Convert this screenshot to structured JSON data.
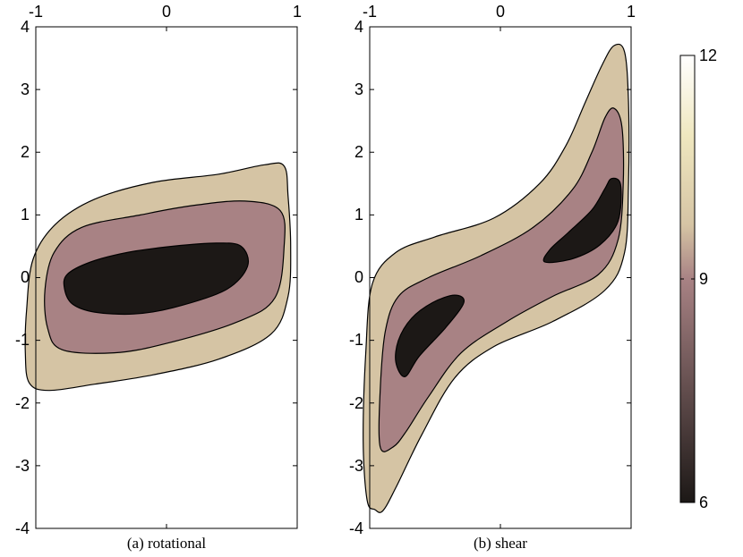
{
  "chart_data": [
    {
      "type": "contour",
      "caption": "(a) rotational",
      "xlim": [
        -1,
        1
      ],
      "ylim": [
        -4,
        4
      ],
      "xticks": [
        "-1",
        "0",
        "1"
      ],
      "yticks": [
        "4",
        "3",
        "2",
        "1",
        "0",
        "-1",
        "-2",
        "-3",
        "-4"
      ],
      "levels": [
        {
          "level": 7,
          "color": "#1c1816",
          "polygon": [
            [
              -0.78,
              -0.18
            ],
            [
              -0.72,
              -0.42
            ],
            [
              -0.55,
              -0.55
            ],
            [
              -0.25,
              -0.58
            ],
            [
              0.05,
              -0.48
            ],
            [
              0.45,
              -0.2
            ],
            [
              0.62,
              0.18
            ],
            [
              0.57,
              0.5
            ],
            [
              0.38,
              0.55
            ],
            [
              0.05,
              0.5
            ],
            [
              -0.3,
              0.4
            ],
            [
              -0.58,
              0.25
            ],
            [
              -0.76,
              0.05
            ]
          ]
        },
        {
          "level": 8,
          "color": "#a88284",
          "polygon": [
            [
              -0.93,
              -0.2
            ],
            [
              -0.91,
              -0.8
            ],
            [
              -0.8,
              -1.15
            ],
            [
              -0.4,
              -1.2
            ],
            [
              0.0,
              -1.05
            ],
            [
              0.55,
              -0.7
            ],
            [
              0.83,
              -0.32
            ],
            [
              0.9,
              0.5
            ],
            [
              0.87,
              1.07
            ],
            [
              0.6,
              1.22
            ],
            [
              0.2,
              1.15
            ],
            [
              -0.2,
              1.0
            ],
            [
              -0.65,
              0.8
            ],
            [
              -0.86,
              0.4
            ]
          ]
        },
        {
          "level": 9,
          "color": "#d5c4a4",
          "polygon": [
            [
              -1.07,
              -0.5
            ],
            [
              -1.08,
              -1.2
            ],
            [
              -1.05,
              -1.68
            ],
            [
              -0.9,
              -1.8
            ],
            [
              -0.55,
              -1.7
            ],
            [
              -0.1,
              -1.55
            ],
            [
              0.4,
              -1.3
            ],
            [
              0.8,
              -0.9
            ],
            [
              0.93,
              -0.3
            ],
            [
              0.95,
              0.5
            ],
            [
              0.93,
              1.3
            ],
            [
              0.9,
              1.78
            ],
            [
              0.75,
              1.8
            ],
            [
              0.4,
              1.65
            ],
            [
              -0.1,
              1.52
            ],
            [
              -0.55,
              1.25
            ],
            [
              -0.85,
              0.85
            ],
            [
              -1.02,
              0.3
            ]
          ]
        }
      ]
    },
    {
      "type": "contour",
      "caption": "(b) shear",
      "xlim": [
        -1,
        1
      ],
      "ylim": [
        -4,
        4
      ],
      "xticks": [
        "-1",
        "0",
        "1"
      ],
      "yticks": [
        "4",
        "3",
        "2",
        "1",
        "0",
        "-1",
        "-2",
        "-3",
        "-4"
      ],
      "levels": [
        {
          "level": 7,
          "color": "#1c1816",
          "polygon": [
            [
              -0.8,
              -1.35
            ],
            [
              -0.78,
              -1.0
            ],
            [
              -0.68,
              -0.65
            ],
            [
              -0.52,
              -0.4
            ],
            [
              -0.35,
              -0.28
            ],
            [
              -0.28,
              -0.4
            ],
            [
              -0.42,
              -0.8
            ],
            [
              -0.62,
              -1.25
            ],
            [
              -0.73,
              -1.58
            ]
          ]
        },
        {
          "level": 7,
          "color": "#1c1816",
          "polygon": [
            [
              0.34,
              0.25
            ],
            [
              0.38,
              0.45
            ],
            [
              0.52,
              0.72
            ],
            [
              0.7,
              1.08
            ],
            [
              0.8,
              1.42
            ],
            [
              0.85,
              1.58
            ],
            [
              0.92,
              1.48
            ],
            [
              0.9,
              0.9
            ],
            [
              0.76,
              0.52
            ],
            [
              0.55,
              0.3
            ]
          ]
        },
        {
          "level": 8,
          "color": "#a88284",
          "polygon": [
            [
              -0.92,
              -2.7
            ],
            [
              -0.92,
              -1.8
            ],
            [
              -0.88,
              -0.85
            ],
            [
              -0.78,
              -0.3
            ],
            [
              -0.55,
              0.0
            ],
            [
              -0.15,
              0.35
            ],
            [
              0.25,
              0.8
            ],
            [
              0.55,
              1.4
            ],
            [
              0.7,
              2.0
            ],
            [
              0.8,
              2.55
            ],
            [
              0.87,
              2.7
            ],
            [
              0.93,
              2.4
            ],
            [
              0.94,
              1.5
            ],
            [
              0.9,
              0.6
            ],
            [
              0.75,
              0.05
            ],
            [
              0.4,
              -0.3
            ],
            [
              0.05,
              -0.7
            ],
            [
              -0.3,
              -1.2
            ],
            [
              -0.55,
              -1.9
            ],
            [
              -0.72,
              -2.45
            ],
            [
              -0.82,
              -2.7
            ]
          ]
        },
        {
          "level": 9,
          "color": "#d5c4a4",
          "polygon": [
            [
              -1.02,
              -3.55
            ],
            [
              -1.05,
              -2.6
            ],
            [
              -1.03,
              -1.2
            ],
            [
              -0.98,
              -0.1
            ],
            [
              -0.8,
              0.4
            ],
            [
              -0.5,
              0.65
            ],
            [
              -0.05,
              0.95
            ],
            [
              0.3,
              1.5
            ],
            [
              0.5,
              2.1
            ],
            [
              0.65,
              2.8
            ],
            [
              0.78,
              3.4
            ],
            [
              0.87,
              3.7
            ],
            [
              0.95,
              3.6
            ],
            [
              0.98,
              2.8
            ],
            [
              0.98,
              1.5
            ],
            [
              0.95,
              0.4
            ],
            [
              0.8,
              -0.2
            ],
            [
              0.4,
              -0.7
            ],
            [
              -0.05,
              -1.1
            ],
            [
              -0.35,
              -1.6
            ],
            [
              -0.6,
              -2.5
            ],
            [
              -0.8,
              -3.35
            ],
            [
              -0.9,
              -3.72
            ],
            [
              -0.96,
              -3.7
            ]
          ]
        }
      ]
    }
  ],
  "colorbar": {
    "min": 6,
    "max": 12,
    "labels": [
      "12",
      "9",
      "6"
    ],
    "stops": [
      "#1c1816",
      "#a88284",
      "#d5c4a4",
      "#efe7bf",
      "#ffffff"
    ]
  }
}
